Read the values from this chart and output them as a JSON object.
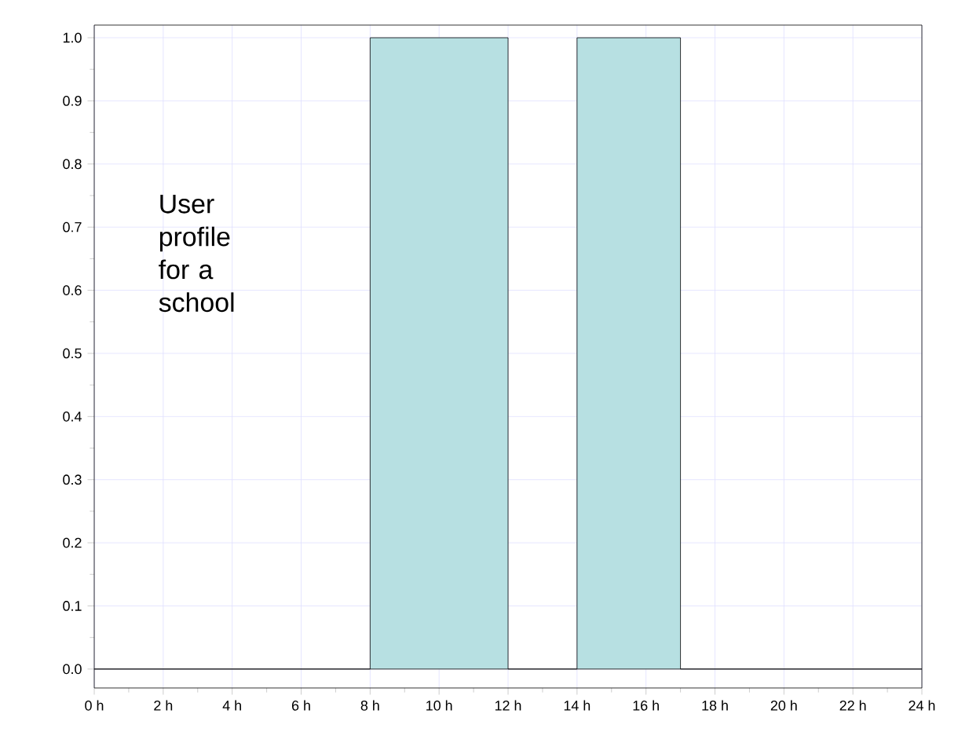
{
  "chart_data": {
    "type": "area",
    "x": [
      0,
      8,
      8,
      12,
      12,
      14,
      14,
      17,
      17,
      24
    ],
    "values": [
      0,
      0,
      1,
      1,
      0,
      0,
      1,
      1,
      0,
      0
    ],
    "color": "#b7e0e2",
    "xlim": [
      0,
      24
    ],
    "ylim": [
      -0.03,
      1.02
    ],
    "xticks": [
      {
        "value": 0,
        "label": "0 h"
      },
      {
        "value": 2,
        "label": "2 h"
      },
      {
        "value": 4,
        "label": "4 h"
      },
      {
        "value": 6,
        "label": "6 h"
      },
      {
        "value": 8,
        "label": "8 h"
      },
      {
        "value": 10,
        "label": "10 h"
      },
      {
        "value": 12,
        "label": "12 h"
      },
      {
        "value": 14,
        "label": "14 h"
      },
      {
        "value": 16,
        "label": "16 h"
      },
      {
        "value": 18,
        "label": "18 h"
      },
      {
        "value": 20,
        "label": "20 h"
      },
      {
        "value": 22,
        "label": "22 h"
      },
      {
        "value": 24,
        "label": "24 h"
      }
    ],
    "yticks": [
      {
        "value": 0,
        "label": "0.0"
      },
      {
        "value": 0.1,
        "label": "0.1"
      },
      {
        "value": 0.2,
        "label": "0.2"
      },
      {
        "value": 0.3,
        "label": "0.3"
      },
      {
        "value": 0.4,
        "label": "0.4"
      },
      {
        "value": 0.5,
        "label": "0.5"
      },
      {
        "value": 0.6,
        "label": "0.6"
      },
      {
        "value": 0.7,
        "label": "0.7"
      },
      {
        "value": 0.8,
        "label": "0.8"
      },
      {
        "value": 0.9,
        "label": "0.9"
      },
      {
        "value": 1,
        "label": "1.0"
      }
    ],
    "grid": true,
    "annotations": [
      "User profile for a school"
    ]
  }
}
